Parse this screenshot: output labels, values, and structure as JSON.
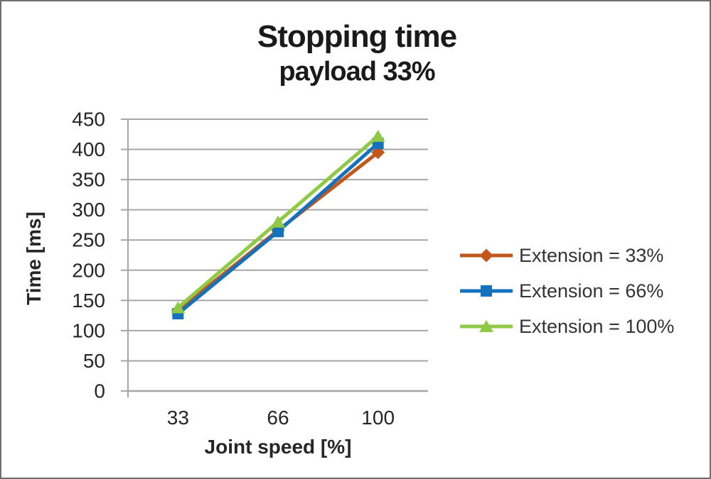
{
  "chart_data": {
    "type": "line",
    "title": "Stopping time",
    "subtitle": "payload 33%",
    "xlabel": "Joint speed [%]",
    "ylabel": "Time [ms]",
    "categories": [
      "33",
      "66",
      "100"
    ],
    "series": [
      {
        "name": "Extension = 33%",
        "marker": "diamond",
        "color": "#C2571B",
        "values": [
          133,
          266,
          395
        ]
      },
      {
        "name": "Extension = 66%",
        "marker": "square",
        "color": "#1472BC",
        "values": [
          128,
          264,
          410
        ]
      },
      {
        "name": "Extension = 100%",
        "marker": "triangle",
        "color": "#8FC945",
        "values": [
          138,
          280,
          422
        ]
      }
    ],
    "ylim": [
      0,
      450
    ],
    "yticks": [
      0,
      50,
      100,
      150,
      200,
      250,
      300,
      350,
      400,
      450
    ],
    "grid": "horizontal",
    "gridline_color": "#A6A6A6",
    "axis_text_color": "#262626",
    "legend_position": "right"
  }
}
